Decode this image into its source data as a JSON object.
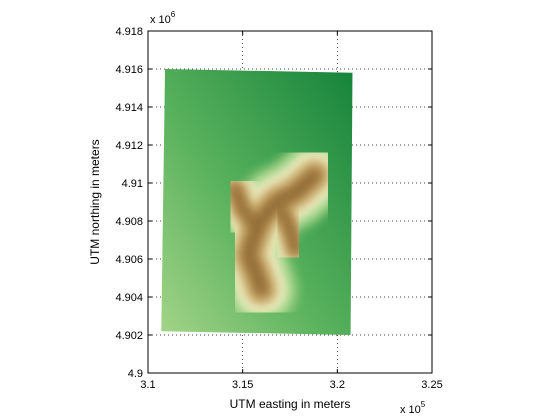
{
  "chart_data": {
    "type": "heatmap",
    "title": "",
    "xlabel": "UTM easting in meters",
    "ylabel": "UTM northing in meters",
    "x_exponent_label": "x 10",
    "x_exponent": "5",
    "y_exponent_label": "x 10",
    "y_exponent": "6",
    "x_ticks": [
      3.1,
      3.15,
      3.2,
      3.25
    ],
    "x_tick_labels": [
      "3.1",
      "3.15",
      "3.2",
      "3.25"
    ],
    "y_ticks": [
      4.9,
      4.902,
      4.904,
      4.906,
      4.908,
      4.91,
      4.912,
      4.914,
      4.916,
      4.918
    ],
    "y_tick_labels": [
      "4.9",
      "4.902",
      "4.904",
      "4.906",
      "4.908",
      "4.91",
      "4.912",
      "4.914",
      "4.916",
      "4.918"
    ],
    "xlim": [
      310000,
      325000
    ],
    "ylim": [
      4900000,
      4918000
    ],
    "grid": true,
    "grid_style": "dotted",
    "colormap": "terrain (green lowlands, light yellow mid, brown ridges)",
    "colormap_stops": [
      "#13823a",
      "#58b15c",
      "#a7d68a",
      "#f2f2c8",
      "#d3b97e",
      "#b0894c",
      "#8b6630"
    ],
    "data_extent": {
      "corners": [
        {
          "x": 310900,
          "y": 4916000
        },
        {
          "x": 320800,
          "y": 4915800
        },
        {
          "x": 320700,
          "y": 4902000
        },
        {
          "x": 310700,
          "y": 4902200
        }
      ]
    },
    "ridge_centerline": [
      {
        "x": 316000,
        "y": 4904400
      },
      {
        "x": 315700,
        "y": 4905300
      },
      {
        "x": 315300,
        "y": 4906200
      },
      {
        "x": 315600,
        "y": 4907200
      },
      {
        "x": 316000,
        "y": 4908100
      },
      {
        "x": 316800,
        "y": 4909000
      },
      {
        "x": 317800,
        "y": 4909500
      },
      {
        "x": 318800,
        "y": 4910400
      }
    ],
    "ridge_branches": [
      [
        {
          "x": 315700,
          "y": 4907800
        },
        {
          "x": 315000,
          "y": 4908600
        },
        {
          "x": 314600,
          "y": 4909700
        }
      ],
      [
        {
          "x": 317000,
          "y": 4908600
        },
        {
          "x": 317500,
          "y": 4907600
        },
        {
          "x": 317800,
          "y": 4906500
        }
      ]
    ]
  }
}
